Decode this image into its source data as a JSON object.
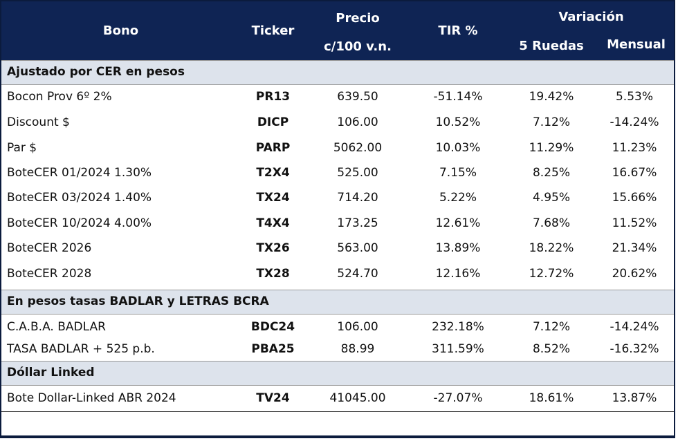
{
  "header": {
    "bono": "Bono",
    "ticker": "Ticker",
    "precio": [
      "Precio",
      "c/100 v.n."
    ],
    "tir": "TIR %",
    "variacion": "Variación",
    "ruedas": "5 Ruedas",
    "mensual": "Mensual"
  },
  "sections": [
    {
      "title": "Ajustado por CER en pesos",
      "rows": [
        [
          "Bocon Prov 6º 2%",
          "PR13",
          "639.50",
          "-51.14%",
          "19.42%",
          "5.53%"
        ],
        [
          "Discount $",
          "DICP",
          "106.00",
          "10.52%",
          "7.12%",
          "-14.24%"
        ],
        [
          "Par $",
          "PARP",
          "5062.00",
          "10.03%",
          "11.29%",
          "11.23%"
        ],
        [
          "BoteCER  01/2024  1.30%",
          "T2X4",
          "525.00",
          "7.15%",
          "8.25%",
          "16.67%"
        ],
        [
          "BoteCER 03/2024  1.40%",
          "TX24",
          "714.20",
          "5.22%",
          "4.95%",
          "15.66%"
        ],
        [
          "BoteCER 10/2024  4.00%",
          "T4X4",
          "173.25",
          "12.61%",
          "7.68%",
          "11.52%"
        ],
        [
          "BoteCER 2026",
          "TX26",
          "563.00",
          "13.89%",
          "18.22%",
          "21.34%"
        ],
        [
          "BoteCER 2028",
          "TX28",
          "524.70",
          "12.16%",
          "12.72%",
          "20.62%"
        ]
      ]
    },
    {
      "title": "En pesos tasas BADLAR y LETRAS BCRA",
      "rows": [
        [
          "C.A.B.A. BADLAR",
          "BDC24",
          "106.00",
          "232.18%",
          "7.12%",
          "-14.24%"
        ],
        [
          "TASA BADLAR + 525 p.b.",
          "PBA25",
          "88.99",
          "311.59%",
          "8.52%",
          "-16.32%"
        ]
      ]
    },
    {
      "title": "Dóllar Linked",
      "rows": [
        [
          "Bote Dollar-Linked ABR 2024",
          "TV24",
          "41045.00",
          "-27.07%",
          "18.61%",
          "13.87%"
        ]
      ]
    }
  ]
}
